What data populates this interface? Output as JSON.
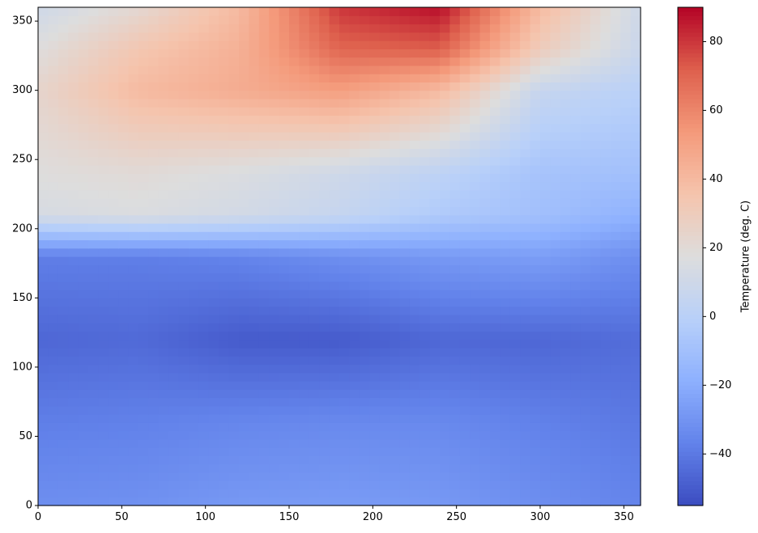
{
  "chart_data": {
    "type": "heatmap",
    "title": "",
    "xlabel": "",
    "ylabel": "",
    "xlim": [
      0,
      360
    ],
    "ylim": [
      0,
      360
    ],
    "x_ticks": [
      0,
      50,
      100,
      150,
      200,
      250,
      300,
      350
    ],
    "y_ticks": [
      0,
      50,
      100,
      150,
      200,
      250,
      300,
      350
    ],
    "colorbar": {
      "label": "Temperature (deg. C)",
      "range": [
        -55,
        90
      ],
      "ticks": [
        -40,
        -20,
        0,
        20,
        40,
        60,
        80
      ],
      "tick_labels": [
        "−40",
        "−20",
        "0",
        "20",
        "40",
        "60",
        "80"
      ],
      "colormap": "coolwarm"
    },
    "grid": false,
    "field_samples": {
      "description_of_axes": "rows are y values, columns are x values, values in deg. C",
      "x": [
        0,
        60,
        120,
        180,
        240,
        300,
        360
      ],
      "y": [
        0,
        60,
        120,
        180,
        210,
        240,
        300,
        330,
        360
      ],
      "values": [
        [
          -32,
          -31,
          -28,
          -27,
          -28,
          -32,
          -36
        ],
        [
          -38,
          -37,
          -35,
          -34,
          -34,
          -37,
          -40
        ],
        [
          -46,
          -45,
          -50,
          -50,
          -46,
          -46,
          -44
        ],
        [
          -38,
          -38,
          -36,
          -32,
          -28,
          -26,
          -32
        ],
        [
          14,
          16,
          12,
          6,
          -4,
          -10,
          -18
        ],
        [
          18,
          20,
          16,
          10,
          2,
          -8,
          -10
        ],
        [
          24,
          40,
          46,
          52,
          40,
          6,
          0
        ],
        [
          18,
          34,
          44,
          70,
          72,
          30,
          8
        ],
        [
          10,
          22,
          40,
          80,
          88,
          40,
          10
        ]
      ]
    }
  }
}
